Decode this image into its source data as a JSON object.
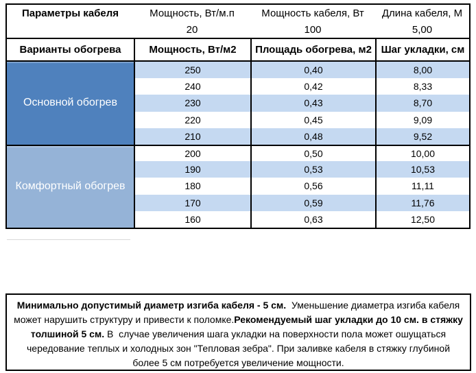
{
  "top": {
    "title": "Параметры кабеля",
    "cols": [
      {
        "label": "Мощность, Вт/м.п",
        "value": "20"
      },
      {
        "label": "Мощность кабеля, Вт",
        "value": "100"
      },
      {
        "label": "Длина кабеля, М",
        "value": "5,00"
      }
    ]
  },
  "header": {
    "variant": "Варианты обогрева",
    "power": "Мощность, Вт/м2",
    "area": "Площадь обогрева, м2",
    "step": "Шаг укладки, см"
  },
  "groups": [
    {
      "label": "Основной обогрев",
      "color": "#4F81BD"
    },
    {
      "label": "Комфортный обогрев",
      "color": "#95B3D7"
    }
  ],
  "rows": [
    {
      "power": "250",
      "area": "0,40",
      "step": "8,00"
    },
    {
      "power": "240",
      "area": "0,42",
      "step": "8,33"
    },
    {
      "power": "230",
      "area": "0,43",
      "step": "8,70"
    },
    {
      "power": "220",
      "area": "0,45",
      "step": "9,09"
    },
    {
      "power": "210",
      "area": "0,48",
      "step": "9,52"
    },
    {
      "power": "200",
      "area": "0,50",
      "step": "10,00"
    },
    {
      "power": "190",
      "area": "0,53",
      "step": "10,53"
    },
    {
      "power": "180",
      "area": "0,56",
      "step": "11,11"
    },
    {
      "power": "170",
      "area": "0,59",
      "step": "11,76"
    },
    {
      "power": "160",
      "area": "0,63",
      "step": "12,50"
    }
  ],
  "note": {
    "segments": [
      {
        "text": "Минимально допустимый диаметр изгиба кабеля - 5 см.",
        "bold": true
      },
      {
        "text": "  Уменьшение диаметра изгиба кабеля может нарушить структуру и привести к поломке.",
        "bold": false
      },
      {
        "text": "Рекомендуемый шаг укладки до 10 см. в стяжку толшиной 5 см.",
        "bold": true
      },
      {
        "text": " В  случае увеличения шага укладки на поверхности пола может ошущаться чередование теплых и холодных зон \"Тепловая зебра\". При заливке кабеля в стяжку глубиной более 5 см потребуется увеличение мощности.",
        "bold": false
      }
    ]
  },
  "colors": {
    "group_main": "#4F81BD",
    "group_comfort": "#95B3D7",
    "row_stripe": "#C5D9F1",
    "border": "#000000"
  }
}
